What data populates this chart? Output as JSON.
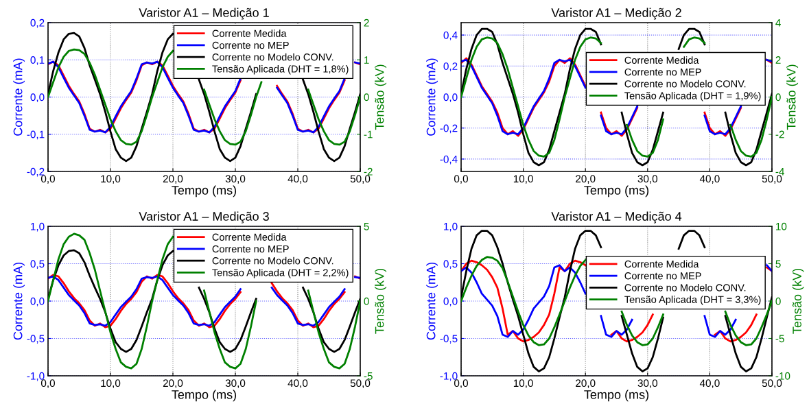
{
  "chart_data": [
    {
      "type": "line",
      "title": "Varistor A1 – Medição 1",
      "xlabel": "Tempo (ms)",
      "ylabel": "Corrente (mA)",
      "y2label": "Tensão (kV)",
      "x": [
        0,
        0.83,
        1.67,
        2.5,
        3.33,
        4.17,
        5,
        5.83,
        6.67,
        7.5,
        8.33,
        9.17,
        10,
        10.83,
        11.67,
        12.5,
        13.33,
        14.17,
        15,
        15.83,
        16.67,
        17.5,
        18.33,
        19.17,
        20,
        20.83,
        21.67,
        22.5,
        23.33,
        24.17,
        25,
        25.83,
        26.67,
        27.5,
        28.33,
        29.17,
        30,
        30.83,
        31.67,
        32.5,
        33.33,
        34.17,
        35,
        35.83,
        36.67,
        37.5,
        38.33,
        39.17,
        40,
        40.83,
        41.67,
        42.5,
        43.33,
        44.17,
        45,
        45.83,
        46.67,
        47.5,
        48.33,
        49.17,
        50
      ],
      "xlim": [
        0,
        50
      ],
      "xticks": [
        {
          "value": 0,
          "label": "0,0"
        },
        {
          "value": 10,
          "label": "10,0"
        },
        {
          "value": 20,
          "label": "20,0"
        },
        {
          "value": 30,
          "label": "30,0"
        },
        {
          "value": 40,
          "label": "40,0"
        },
        {
          "value": 50,
          "label": "50,0"
        }
      ],
      "ylim": [
        -0.2,
        0.2
      ],
      "yticks": [
        {
          "value": -0.2,
          "label": "-0,2"
        },
        {
          "value": -0.1,
          "label": "-0,1"
        },
        {
          "value": 0,
          "label": "0,0"
        },
        {
          "value": 0.1,
          "label": "0,1"
        },
        {
          "value": 0.2,
          "label": "0,2"
        }
      ],
      "y2lim": [
        -2,
        2
      ],
      "y2ticks": [
        -2,
        -1,
        0,
        1,
        2
      ],
      "grid": true,
      "legend": "top right",
      "line_style": "solid",
      "marker": "none",
      "series": [
        {
          "name": "Corrente Medida",
          "color": "#ff0000",
          "values": [
            0.088,
            0.095,
            0.085,
            0.058,
            0.03,
            0.008,
            -0.012,
            -0.045,
            -0.085,
            -0.093,
            -0.088,
            -0.095,
            -0.085,
            -0.058,
            -0.03,
            -0.008,
            0.012,
            0.045,
            0.085,
            0.093,
            0.088,
            0.095,
            0.085,
            0.058,
            0.03,
            0.008,
            -0.012,
            -0.045,
            -0.085,
            -0.093,
            -0.088,
            -0.095,
            -0.085,
            -0.058,
            -0.03,
            -0.008,
            0.012,
            0.045,
            null,
            null,
            null,
            null,
            null,
            null,
            0.03,
            0.008,
            -0.012,
            -0.045,
            -0.085,
            -0.093,
            -0.088,
            -0.095,
            -0.085,
            -0.058,
            -0.03,
            -0.008,
            0.012,
            0.045,
            null,
            0.093,
            0.088
          ]
        },
        {
          "name": "Corrente no MEP",
          "color": "#0000ff",
          "values": [
            0.09,
            0.095,
            0.08,
            0.052,
            0.025,
            0.004,
            -0.016,
            -0.05,
            -0.088,
            -0.093,
            -0.09,
            -0.095,
            -0.08,
            -0.052,
            -0.025,
            -0.004,
            0.016,
            0.05,
            0.088,
            0.093,
            0.09,
            0.095,
            0.08,
            0.052,
            0.025,
            0.004,
            -0.016,
            -0.05,
            -0.088,
            -0.093,
            -0.09,
            -0.095,
            -0.08,
            -0.052,
            -0.025,
            -0.004,
            0.016,
            0.05,
            null,
            null,
            null,
            null,
            null,
            null,
            0.025,
            0.004,
            -0.016,
            -0.05,
            -0.088,
            -0.093,
            -0.09,
            -0.095,
            -0.08,
            -0.052,
            -0.025,
            -0.004,
            0.016,
            0.05,
            null,
            0.093,
            0.09
          ]
        },
        {
          "name": "Corrente no Modelo CONV.",
          "color": "#000000",
          "values": [
            0.008,
            0.07,
            0.12,
            0.155,
            0.17,
            0.172,
            0.163,
            0.132,
            0.085,
            0.047,
            0.008,
            -0.04,
            -0.093,
            -0.14,
            -0.163,
            -0.172,
            -0.163,
            -0.132,
            -0.085,
            -0.04,
            0.008,
            0.07,
            0.12,
            0.155,
            0.17,
            null,
            null,
            null,
            null,
            0.047,
            0.008,
            -0.04,
            -0.093,
            -0.14,
            -0.163,
            -0.172,
            -0.163,
            -0.132,
            -0.085,
            -0.04,
            0.008,
            null,
            null,
            null,
            null,
            null,
            null,
            null,
            null,
            0.047,
            0.008,
            -0.04,
            -0.093,
            -0.14,
            -0.163,
            -0.172,
            -0.163,
            -0.132,
            -0.085,
            -0.04,
            0.008
          ]
        },
        {
          "name": "Tensão Aplicada (DHT = 1,8%)",
          "color": "#008000",
          "axis": "y2",
          "values": [
            0,
            0.4,
            0.8,
            1.08,
            1.24,
            1.28,
            1.26,
            1.16,
            0.92,
            0.6,
            0.2,
            -0.2,
            -0.6,
            -0.92,
            -1.16,
            -1.26,
            -1.28,
            -1.2,
            -0.92,
            -0.48,
            0,
            0.4,
            0.8,
            1.08,
            1.24,
            null,
            null,
            null,
            null,
            null,
            0.2,
            -0.2,
            -0.6,
            -0.92,
            -1.16,
            -1.26,
            -1.28,
            -1.2,
            -0.92,
            -0.48,
            0,
            0.4,
            null,
            null,
            null,
            null,
            null,
            null,
            null,
            null,
            0.2,
            -0.2,
            -0.6,
            -0.92,
            -1.16,
            -1.26,
            -1.28,
            -1.2,
            -0.92,
            -0.48,
            0
          ]
        }
      ]
    },
    {
      "type": "line",
      "title": "Varistor A1 – Medição 2",
      "xlabel": "Tempo (ms)",
      "ylabel": "Corrente (mA)",
      "y2label": "Tensão (kV)",
      "x": [
        0,
        0.83,
        1.67,
        2.5,
        3.33,
        4.17,
        5,
        5.83,
        6.67,
        7.5,
        8.33,
        9.17,
        10,
        10.83,
        11.67,
        12.5,
        13.33,
        14.17,
        15,
        15.83,
        16.67,
        17.5,
        18.33,
        19.17,
        20,
        20.83,
        21.67,
        22.5,
        23.33,
        24.17,
        25,
        25.83,
        26.67,
        27.5,
        28.33,
        29.17,
        30,
        30.83,
        31.67,
        32.5,
        33.33,
        34.17,
        35,
        35.83,
        36.67,
        37.5,
        38.33,
        39.17,
        40,
        40.83,
        41.67,
        42.5,
        43.33,
        44.17,
        45,
        45.83,
        46.67,
        47.5,
        48.33,
        49.17,
        50
      ],
      "xlim": [
        0,
        50
      ],
      "xticks": [
        {
          "value": 0,
          "label": "0,0"
        },
        {
          "value": 10,
          "label": "10,0"
        },
        {
          "value": 20,
          "label": "20,0"
        },
        {
          "value": 30,
          "label": "30,0"
        },
        {
          "value": 40,
          "label": "40,0"
        },
        {
          "value": 50,
          "label": "50,0"
        }
      ],
      "ylim": [
        -0.48,
        0.48
      ],
      "yticks": [
        {
          "value": -0.4,
          "label": "-0,4"
        },
        {
          "value": -0.2,
          "label": "-0,2"
        },
        {
          "value": 0,
          "label": "0,0"
        },
        {
          "value": 0.2,
          "label": "0,2"
        },
        {
          "value": 0.4,
          "label": "0,4"
        }
      ],
      "y2lim": [
        -4,
        4
      ],
      "y2ticks": [
        -4,
        -2,
        0,
        2,
        4
      ],
      "grid": true,
      "legend": "right",
      "line_style": "solid",
      "marker": "none",
      "series": [
        {
          "name": "Corrente Medida",
          "color": "#ff0000",
          "values": [
            0.22,
            0.25,
            0.21,
            0.14,
            0.07,
            0.02,
            -0.03,
            -0.1,
            -0.2,
            -0.24,
            -0.22,
            -0.25,
            -0.21,
            -0.14,
            -0.07,
            -0.02,
            0.03,
            0.1,
            0.2,
            0.24,
            0.22,
            0.25,
            0.21,
            0.14,
            0.07,
            null,
            null,
            -0.1,
            -0.2,
            -0.24,
            -0.22,
            -0.25,
            -0.21,
            -0.14,
            -0.07,
            null,
            null,
            null,
            null,
            null,
            null,
            null,
            null,
            null,
            null,
            null,
            null,
            -0.1,
            -0.2,
            -0.24,
            -0.22,
            -0.25,
            -0.21,
            -0.14,
            -0.07,
            null,
            null,
            null,
            null,
            0.24,
            0.22
          ]
        },
        {
          "name": "Corrente no MEP",
          "color": "#0000ff",
          "values": [
            0.23,
            0.24,
            0.2,
            0.13,
            0.06,
            0.01,
            -0.04,
            -0.12,
            -0.22,
            -0.24,
            -0.23,
            -0.24,
            -0.2,
            -0.13,
            -0.06,
            -0.01,
            0.04,
            0.12,
            0.22,
            0.24,
            0.23,
            0.24,
            0.2,
            0.13,
            0.06,
            null,
            null,
            -0.12,
            -0.22,
            -0.24,
            -0.23,
            -0.24,
            -0.2,
            -0.13,
            -0.06,
            null,
            null,
            null,
            null,
            null,
            null,
            null,
            null,
            null,
            null,
            null,
            null,
            -0.12,
            -0.22,
            -0.24,
            -0.23,
            -0.24,
            -0.2,
            -0.13,
            -0.06,
            null,
            null,
            null,
            null,
            0.24,
            0.23
          ]
        },
        {
          "name": "Corrente no Modelo CONV.",
          "color": "#000000",
          "values": [
            0.02,
            0.18,
            0.31,
            0.4,
            0.44,
            0.44,
            0.42,
            0.34,
            0.22,
            0.12,
            0.02,
            -0.1,
            -0.24,
            -0.36,
            -0.42,
            -0.44,
            -0.42,
            -0.34,
            -0.22,
            -0.1,
            0.02,
            0.18,
            0.31,
            0.4,
            0.44,
            0.44,
            0.42,
            0.34,
            null,
            null,
            null,
            -0.1,
            -0.24,
            -0.36,
            -0.42,
            -0.44,
            -0.42,
            -0.34,
            -0.22,
            -0.1,
            null,
            null,
            0.31,
            0.4,
            0.44,
            0.44,
            0.42,
            0.34,
            null,
            null,
            null,
            -0.1,
            -0.24,
            -0.36,
            -0.42,
            -0.44,
            -0.42,
            -0.34,
            -0.22,
            -0.1,
            0.02
          ]
        },
        {
          "name": "Tensão Aplicada (DHT = 1,9%)",
          "color": "#008000",
          "axis": "y2",
          "values": [
            0,
            1,
            2,
            2.7,
            3.1,
            3.2,
            3.15,
            2.9,
            2.3,
            1.5,
            0.5,
            -0.5,
            -1.5,
            -2.3,
            -2.9,
            -3.15,
            -3.2,
            -3,
            -2.3,
            -1.2,
            0,
            1,
            2,
            2.7,
            3.1,
            3.2,
            3.15,
            2.9,
            null,
            null,
            null,
            null,
            -1.5,
            -2.3,
            -2.9,
            -3.15,
            -3.2,
            -3,
            -2.3,
            -1.2,
            null,
            null,
            null,
            2.7,
            3.1,
            3.2,
            3.15,
            2.9,
            null,
            null,
            null,
            null,
            -1.5,
            -2.3,
            -2.9,
            -3.15,
            -3.2,
            -3,
            -2.3,
            -1.2,
            0
          ]
        }
      ]
    },
    {
      "type": "line",
      "title": "Varistor A1 – Medição 3",
      "xlabel": "Tempo (ms)",
      "ylabel": "Corrente (mA)",
      "y2label": "Tensão (kV)",
      "x": [
        0,
        0.83,
        1.67,
        2.5,
        3.33,
        4.17,
        5,
        5.83,
        6.67,
        7.5,
        8.33,
        9.17,
        10,
        10.83,
        11.67,
        12.5,
        13.33,
        14.17,
        15,
        15.83,
        16.67,
        17.5,
        18.33,
        19.17,
        20,
        20.83,
        21.67,
        22.5,
        23.33,
        24.17,
        25,
        25.83,
        26.67,
        27.5,
        28.33,
        29.17,
        30,
        30.83,
        31.67,
        32.5,
        33.33,
        34.17,
        35,
        35.83,
        36.67,
        37.5,
        38.33,
        39.17,
        40,
        40.83,
        41.67,
        42.5,
        43.33,
        44.17,
        45,
        45.83,
        46.67,
        47.5,
        48.33,
        49.17,
        50
      ],
      "xlim": [
        0,
        50
      ],
      "xticks": [
        {
          "value": 0,
          "label": "0,0"
        },
        {
          "value": 10,
          "label": "10,0"
        },
        {
          "value": 20,
          "label": "20,0"
        },
        {
          "value": 30,
          "label": "30,0"
        },
        {
          "value": 40,
          "label": "40,0"
        },
        {
          "value": 50,
          "label": "50,0"
        }
      ],
      "ylim": [
        -1,
        1
      ],
      "yticks": [
        {
          "value": -1,
          "label": "-1,0"
        },
        {
          "value": -0.5,
          "label": "-0,5"
        },
        {
          "value": 0,
          "label": "0,0"
        },
        {
          "value": 0.5,
          "label": "0,5"
        },
        {
          "value": 1,
          "label": "1,0"
        }
      ],
      "y2lim": [
        -5,
        5
      ],
      "y2ticks": [
        -5,
        0,
        5
      ],
      "grid": true,
      "legend": "top right",
      "line_style": "solid",
      "marker": "none",
      "series": [
        {
          "name": "Corrente Medida",
          "color": "#ff0000",
          "values": [
            0.3,
            0.35,
            0.33,
            0.24,
            0.13,
            0.04,
            -0.03,
            -0.12,
            -0.26,
            -0.33,
            -0.3,
            -0.35,
            -0.33,
            -0.24,
            -0.13,
            -0.04,
            0.03,
            0.12,
            0.26,
            0.33,
            0.3,
            0.35,
            0.33,
            0.24,
            0.13,
            0.04,
            -0.03,
            -0.12,
            -0.26,
            -0.33,
            -0.3,
            -0.35,
            -0.33,
            -0.24,
            -0.13,
            -0.04,
            0.03,
            0.12,
            null,
            null,
            null,
            null,
            null,
            0.24,
            0.13,
            0.04,
            -0.03,
            -0.12,
            -0.26,
            -0.33,
            -0.3,
            -0.35,
            -0.33,
            -0.24,
            -0.13,
            -0.04,
            0.03,
            0.12,
            null,
            0.33,
            0.3
          ]
        },
        {
          "name": "Corrente no MEP",
          "color": "#0000ff",
          "values": [
            0.31,
            0.33,
            0.28,
            0.18,
            0.08,
            0.01,
            -0.06,
            -0.16,
            -0.3,
            -0.32,
            -0.31,
            -0.33,
            -0.28,
            -0.18,
            -0.08,
            -0.01,
            0.06,
            0.16,
            0.3,
            0.32,
            0.31,
            0.33,
            0.28,
            0.18,
            0.08,
            0.01,
            -0.06,
            -0.16,
            -0.3,
            -0.32,
            -0.31,
            -0.33,
            -0.28,
            -0.18,
            -0.08,
            -0.01,
            0.06,
            0.16,
            null,
            null,
            null,
            null,
            null,
            0.18,
            0.08,
            0.01,
            -0.06,
            -0.16,
            -0.3,
            -0.32,
            -0.31,
            -0.33,
            -0.28,
            -0.18,
            -0.08,
            -0.01,
            0.06,
            0.16,
            null,
            0.32,
            0.31
          ]
        },
        {
          "name": "Corrente no Modelo CONV.",
          "color": "#000000",
          "values": [
            0.03,
            0.28,
            0.48,
            0.61,
            0.67,
            0.68,
            0.64,
            0.52,
            0.34,
            0.18,
            0.03,
            -0.15,
            -0.37,
            -0.55,
            -0.64,
            -0.68,
            -0.64,
            -0.52,
            -0.34,
            -0.15,
            0.03,
            0.28,
            0.48,
            0.61,
            0.67,
            null,
            null,
            null,
            null,
            0.18,
            0.03,
            -0.15,
            -0.37,
            -0.55,
            -0.64,
            -0.68,
            -0.64,
            -0.52,
            -0.34,
            -0.15,
            0.03,
            null,
            null,
            null,
            null,
            null,
            null,
            null,
            null,
            0.18,
            0.03,
            -0.15,
            -0.37,
            -0.55,
            -0.64,
            -0.68,
            -0.64,
            -0.52,
            -0.34,
            -0.15,
            0.03
          ]
        },
        {
          "name": "Tensão Aplicada (DHT = 2,2%)",
          "color": "#008000",
          "axis": "y2",
          "values": [
            0,
            1.4,
            2.8,
            3.8,
            4.3,
            4.5,
            4.4,
            4.1,
            3.2,
            2.1,
            0.7,
            -0.7,
            -2.1,
            -3.2,
            -4.1,
            -4.4,
            -4.5,
            -4.2,
            -3.2,
            -1.7,
            0,
            1.4,
            2.8,
            3.8,
            4.3,
            null,
            null,
            null,
            null,
            null,
            0.7,
            -0.7,
            -2.1,
            -3.2,
            -4.1,
            -4.4,
            -4.5,
            -4.2,
            -3.2,
            -1.7,
            0,
            null,
            null,
            null,
            null,
            null,
            null,
            null,
            null,
            null,
            0.7,
            -0.7,
            -2.1,
            -3.2,
            -4.1,
            -4.4,
            -4.5,
            -4.2,
            -3.2,
            -1.7,
            0
          ]
        }
      ]
    },
    {
      "type": "line",
      "title": "Varistor A1 – Medição 4",
      "xlabel": "Tempo (ms)",
      "ylabel": "Corrente (mA)",
      "y2label": "Tensão (kV)",
      "x": [
        0,
        0.83,
        1.67,
        2.5,
        3.33,
        4.17,
        5,
        5.83,
        6.67,
        7.5,
        8.33,
        9.17,
        10,
        10.83,
        11.67,
        12.5,
        13.33,
        14.17,
        15,
        15.83,
        16.67,
        17.5,
        18.33,
        19.17,
        20,
        20.83,
        21.67,
        22.5,
        23.33,
        24.17,
        25,
        25.83,
        26.67,
        27.5,
        28.33,
        29.17,
        30,
        30.83,
        31.67,
        32.5,
        33.33,
        34.17,
        35,
        35.83,
        36.67,
        37.5,
        38.33,
        39.17,
        40,
        40.83,
        41.67,
        42.5,
        43.33,
        44.17,
        45,
        45.83,
        46.67,
        47.5,
        48.33,
        49.17,
        50
      ],
      "xlim": [
        0,
        50
      ],
      "xticks": [
        {
          "value": 0,
          "label": "0,0"
        },
        {
          "value": 10,
          "label": "10,0"
        },
        {
          "value": 20,
          "label": "20,0"
        },
        {
          "value": 30,
          "label": "30,0"
        },
        {
          "value": 40,
          "label": "40,0"
        },
        {
          "value": 50,
          "label": "50,0"
        }
      ],
      "ylim": [
        -1,
        1
      ],
      "yticks": [
        {
          "value": -1,
          "label": "-1,0"
        },
        {
          "value": -0.5,
          "label": "-0,5"
        },
        {
          "value": 0,
          "label": "0,0"
        },
        {
          "value": 0.5,
          "label": "0,5"
        },
        {
          "value": 1,
          "label": "1,0"
        }
      ],
      "y2lim": [
        -10,
        10
      ],
      "y2ticks": [
        -10,
        -5,
        0,
        5,
        10
      ],
      "grid": true,
      "legend": "right",
      "line_style": "solid",
      "marker": "none",
      "series": [
        {
          "name": "Corrente Medida",
          "color": "#ff0000",
          "values": [
            0.4,
            0.5,
            0.54,
            0.52,
            0.48,
            0.42,
            0.32,
            0.18,
            -0.1,
            -0.45,
            -0.4,
            -0.5,
            -0.54,
            -0.52,
            -0.48,
            -0.42,
            -0.32,
            -0.18,
            0.1,
            0.45,
            0.4,
            0.5,
            0.54,
            0.52,
            0.48,
            null,
            null,
            null,
            null,
            -0.45,
            -0.4,
            -0.5,
            -0.54,
            -0.52,
            -0.48,
            -0.42,
            -0.32,
            -0.18,
            null,
            null,
            null,
            null,
            null,
            null,
            null,
            null,
            null,
            null,
            null,
            -0.45,
            -0.4,
            -0.5,
            -0.54,
            -0.52,
            -0.48,
            -0.42,
            -0.32,
            -0.18,
            null,
            0.45,
            0.4
          ]
        },
        {
          "name": "Corrente no MEP",
          "color": "#0000ff",
          "values": [
            0.4,
            0.45,
            0.38,
            0.25,
            0.1,
            0.02,
            -0.06,
            -0.2,
            -0.45,
            -0.48,
            -0.4,
            -0.45,
            -0.38,
            -0.25,
            -0.1,
            -0.02,
            0.06,
            0.2,
            0.45,
            0.48,
            0.4,
            0.45,
            0.38,
            0.25,
            0.1,
            null,
            null,
            -0.2,
            -0.45,
            -0.48,
            -0.4,
            -0.45,
            -0.38,
            -0.25,
            null,
            null,
            null,
            null,
            null,
            null,
            null,
            null,
            null,
            null,
            null,
            null,
            null,
            -0.2,
            -0.45,
            -0.48,
            -0.4,
            -0.45,
            -0.38,
            -0.25,
            null,
            null,
            null,
            null,
            null,
            0.48,
            0.4
          ]
        },
        {
          "name": "Corrente no Modelo CONV.",
          "color": "#000000",
          "values": [
            0.05,
            0.4,
            0.7,
            0.88,
            0.94,
            0.94,
            0.88,
            0.72,
            0.5,
            0.25,
            0.02,
            -0.2,
            -0.45,
            -0.7,
            -0.88,
            -0.94,
            -0.9,
            -0.75,
            -0.5,
            -0.22,
            0.05,
            0.4,
            0.7,
            0.88,
            0.94,
            0.94,
            0.88,
            0.72,
            null,
            null,
            null,
            -0.2,
            -0.45,
            -0.7,
            -0.88,
            -0.94,
            -0.9,
            -0.75,
            -0.5,
            -0.22,
            null,
            null,
            0.7,
            0.88,
            0.94,
            0.94,
            0.88,
            0.72,
            null,
            null,
            null,
            -0.2,
            -0.45,
            -0.7,
            -0.88,
            -0.94,
            -0.9,
            -0.75,
            -0.5,
            -0.22,
            0.05
          ]
        },
        {
          "name": "Tensão Aplicada (DHT = 3,3%)",
          "color": "#008000",
          "axis": "y2",
          "values": [
            0,
            1.8,
            3.4,
            4.7,
            5.5,
            5.9,
            5.8,
            5.4,
            4.4,
            2.6,
            0.6,
            -1.4,
            -3.2,
            -4.6,
            -5.5,
            -5.9,
            -5.8,
            -5,
            -3.5,
            -1.8,
            0,
            1.8,
            3.4,
            4.7,
            5.5,
            null,
            null,
            null,
            null,
            null,
            null,
            -1.4,
            -3.2,
            -4.6,
            -5.5,
            -5.9,
            -5.8,
            -5,
            -3.5,
            -1.8,
            null,
            null,
            null,
            null,
            null,
            null,
            null,
            null,
            null,
            null,
            null,
            -1.4,
            -3.2,
            -4.6,
            -5.5,
            -5.9,
            -5.8,
            -5,
            -3.5,
            -1.8,
            0
          ]
        }
      ]
    }
  ]
}
